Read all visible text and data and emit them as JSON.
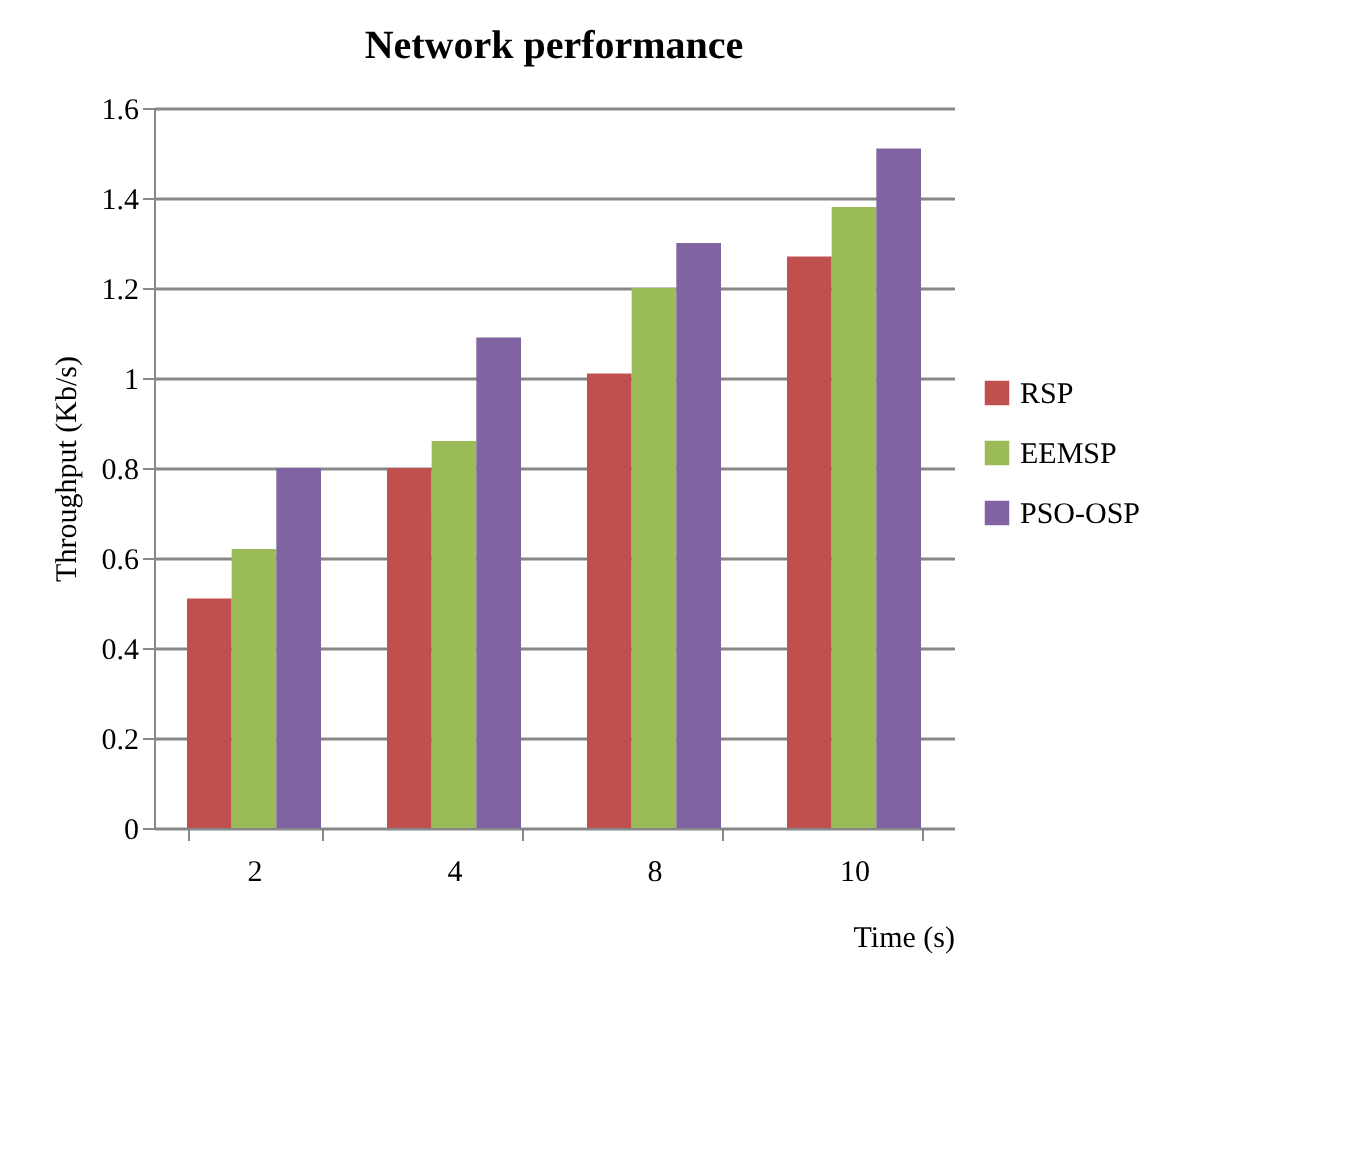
{
  "chart_data": {
    "type": "bar",
    "title": "Network performance",
    "xlabel": "Time (s)",
    "ylabel": "Throughput (Kb/s)",
    "categories": [
      "2",
      "4",
      "8",
      "10"
    ],
    "series": [
      {
        "name": "RSP",
        "color": "#c0504d",
        "values": [
          0.51,
          0.8,
          1.01,
          1.27
        ]
      },
      {
        "name": "EEMSP",
        "color": "#9bbb59",
        "values": [
          0.62,
          0.86,
          1.2,
          1.38
        ]
      },
      {
        "name": "PSO-OSP",
        "color": "#8064a2",
        "values": [
          0.8,
          1.09,
          1.3,
          1.51
        ]
      }
    ],
    "ylim": [
      0,
      1.6
    ],
    "yticks": [
      0,
      0.2,
      0.4,
      0.6,
      0.8,
      1,
      1.2,
      1.4,
      1.6
    ],
    "grid": "y",
    "legend": "right"
  }
}
